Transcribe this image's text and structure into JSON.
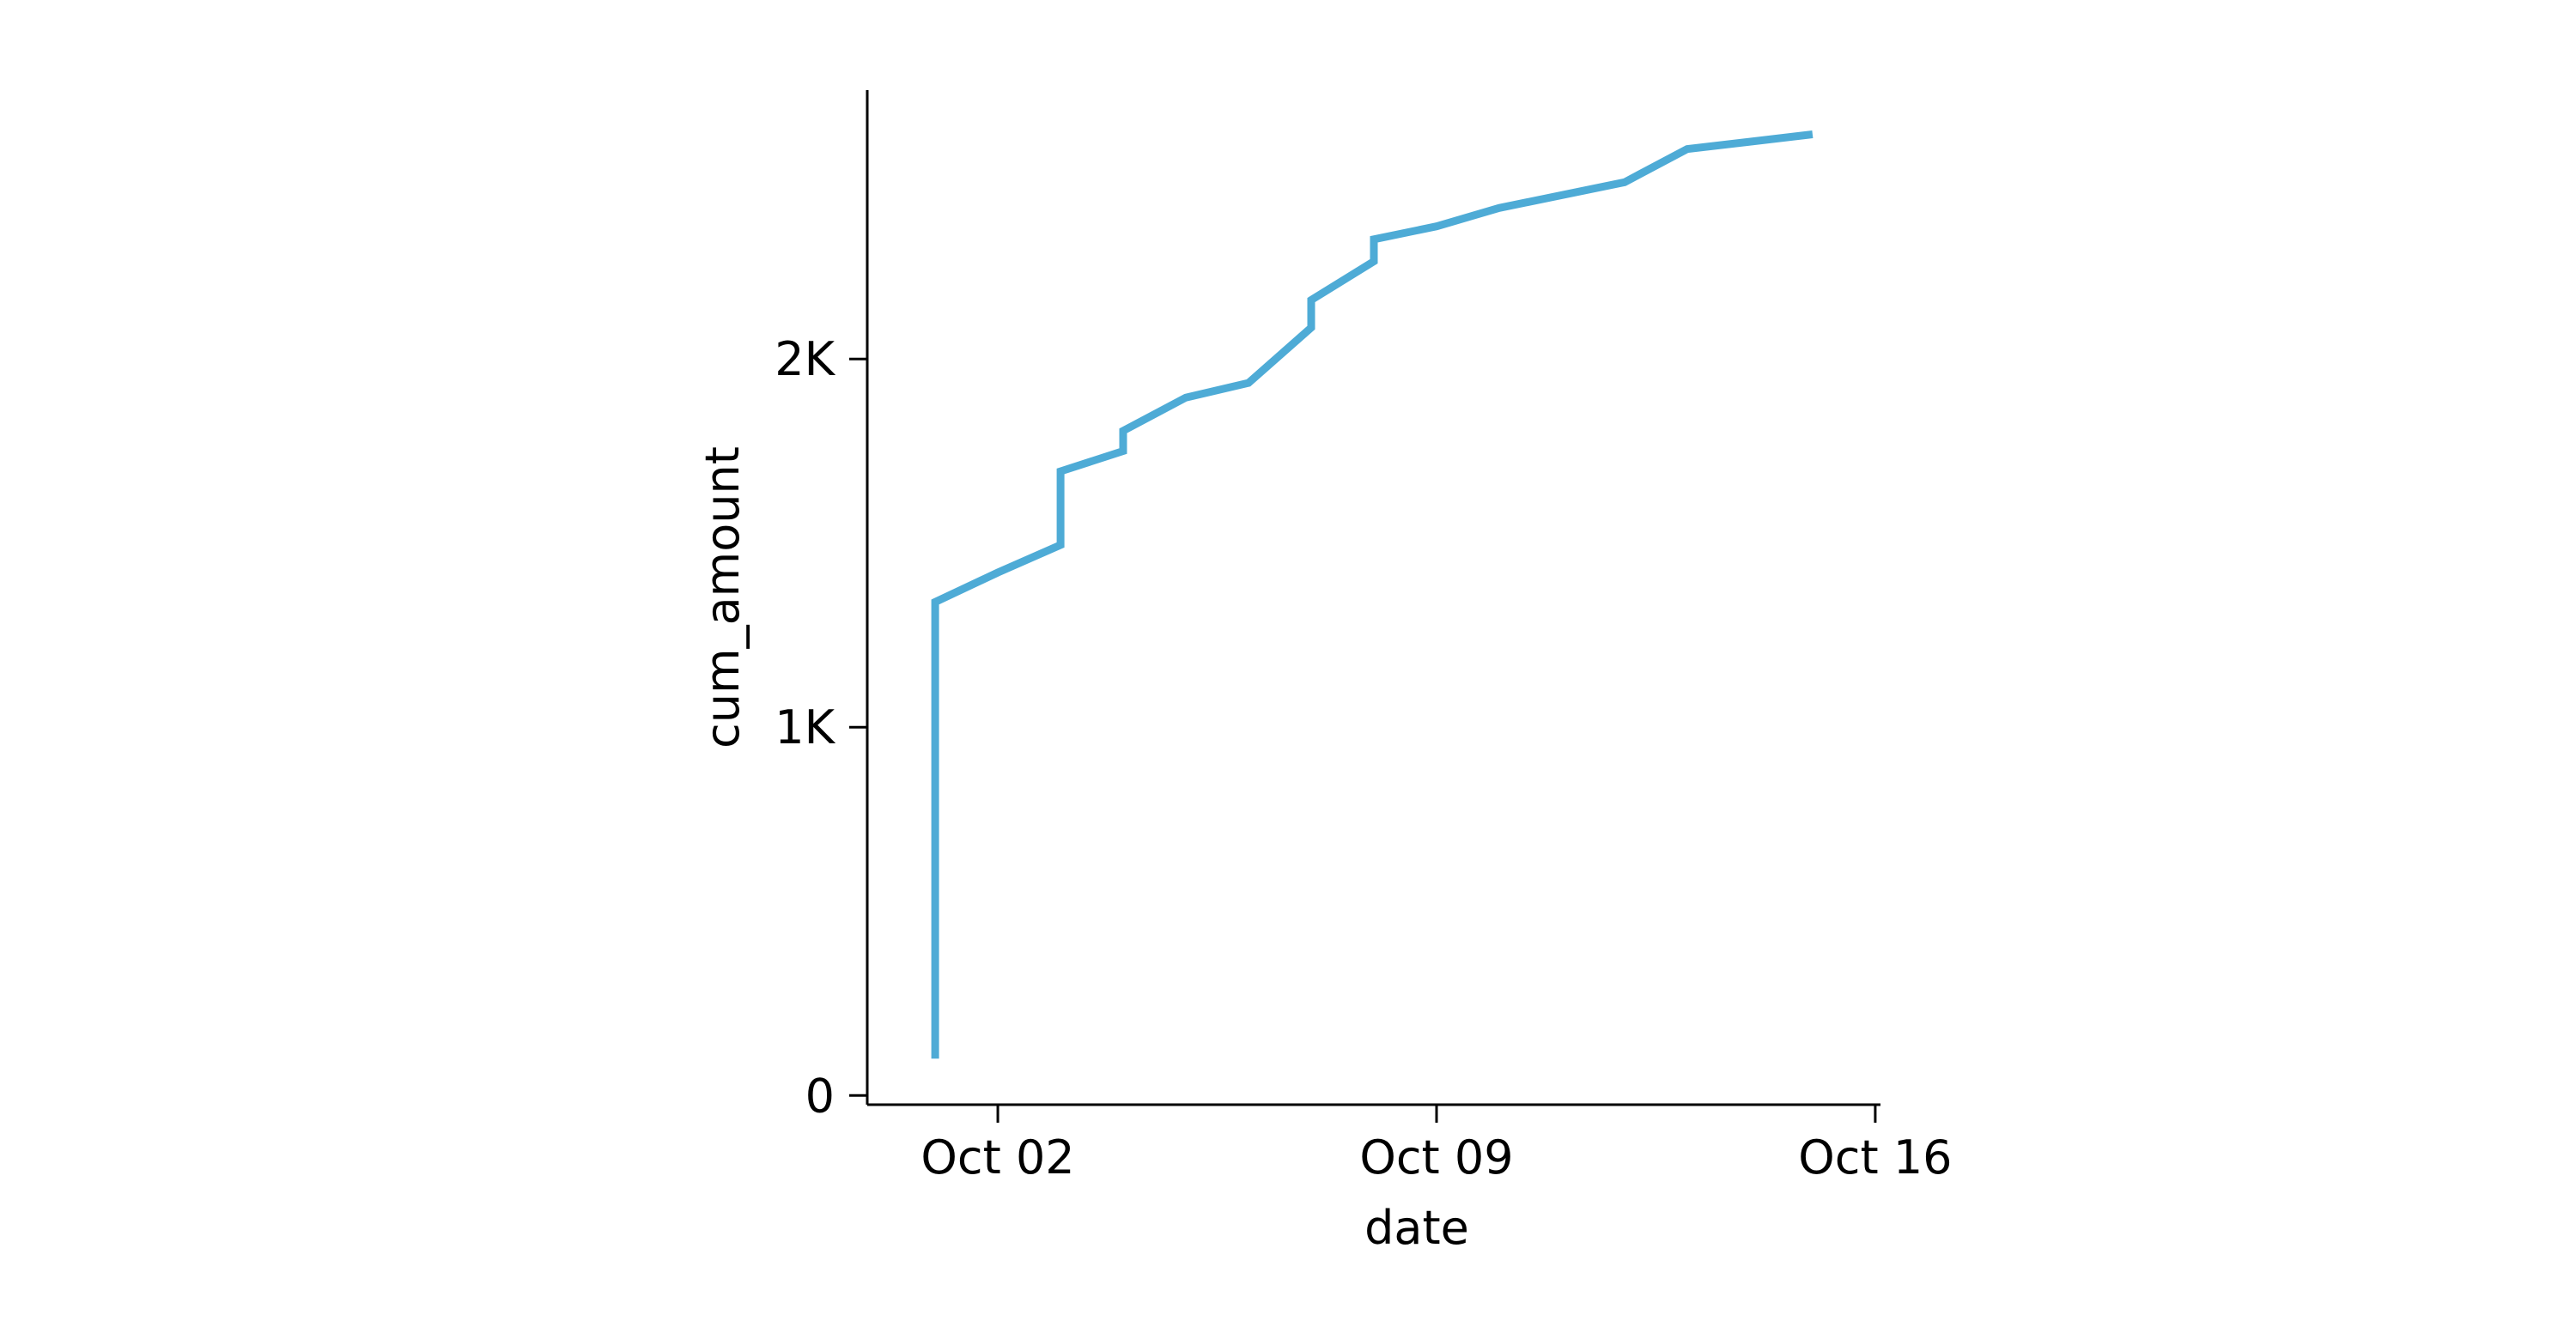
{
  "chart_data": {
    "type": "line",
    "xlabel": "date",
    "ylabel": "cum_amount",
    "x_ticks": [
      {
        "value": "2023-10-02",
        "label": "Oct 02"
      },
      {
        "value": "2023-10-09",
        "label": "Oct 09"
      },
      {
        "value": "2023-10-16",
        "label": "Oct 16"
      }
    ],
    "y_ticks": [
      {
        "value": 0,
        "label": "0"
      },
      {
        "value": 1000,
        "label": "1K"
      },
      {
        "value": 2000,
        "label": "2K"
      }
    ],
    "xlim": [
      "2023-09-29T22:00",
      "2023-10-16T02:00"
    ],
    "ylim": [
      -25,
      2730
    ],
    "grid": false,
    "series": [
      {
        "color": "#4eabd6",
        "points": [
          {
            "x": "2023-10-01",
            "y": 100
          },
          {
            "x": "2023-10-01",
            "y": 1340
          },
          {
            "x": "2023-10-02",
            "y": 1420
          },
          {
            "x": "2023-10-03",
            "y": 1495
          },
          {
            "x": "2023-10-03",
            "y": 1695
          },
          {
            "x": "2023-10-04",
            "y": 1750
          },
          {
            "x": "2023-10-04",
            "y": 1805
          },
          {
            "x": "2023-10-05",
            "y": 1895
          },
          {
            "x": "2023-10-06",
            "y": 1935
          },
          {
            "x": "2023-10-07",
            "y": 2085
          },
          {
            "x": "2023-10-07",
            "y": 2160
          },
          {
            "x": "2023-10-08",
            "y": 2265
          },
          {
            "x": "2023-10-08",
            "y": 2325
          },
          {
            "x": "2023-10-09",
            "y": 2360
          },
          {
            "x": "2023-10-10",
            "y": 2410
          },
          {
            "x": "2023-10-11",
            "y": 2445
          },
          {
            "x": "2023-10-12",
            "y": 2480
          },
          {
            "x": "2023-10-13",
            "y": 2570
          },
          {
            "x": "2023-10-14",
            "y": 2590
          },
          {
            "x": "2023-10-15",
            "y": 2610
          }
        ]
      }
    ]
  }
}
